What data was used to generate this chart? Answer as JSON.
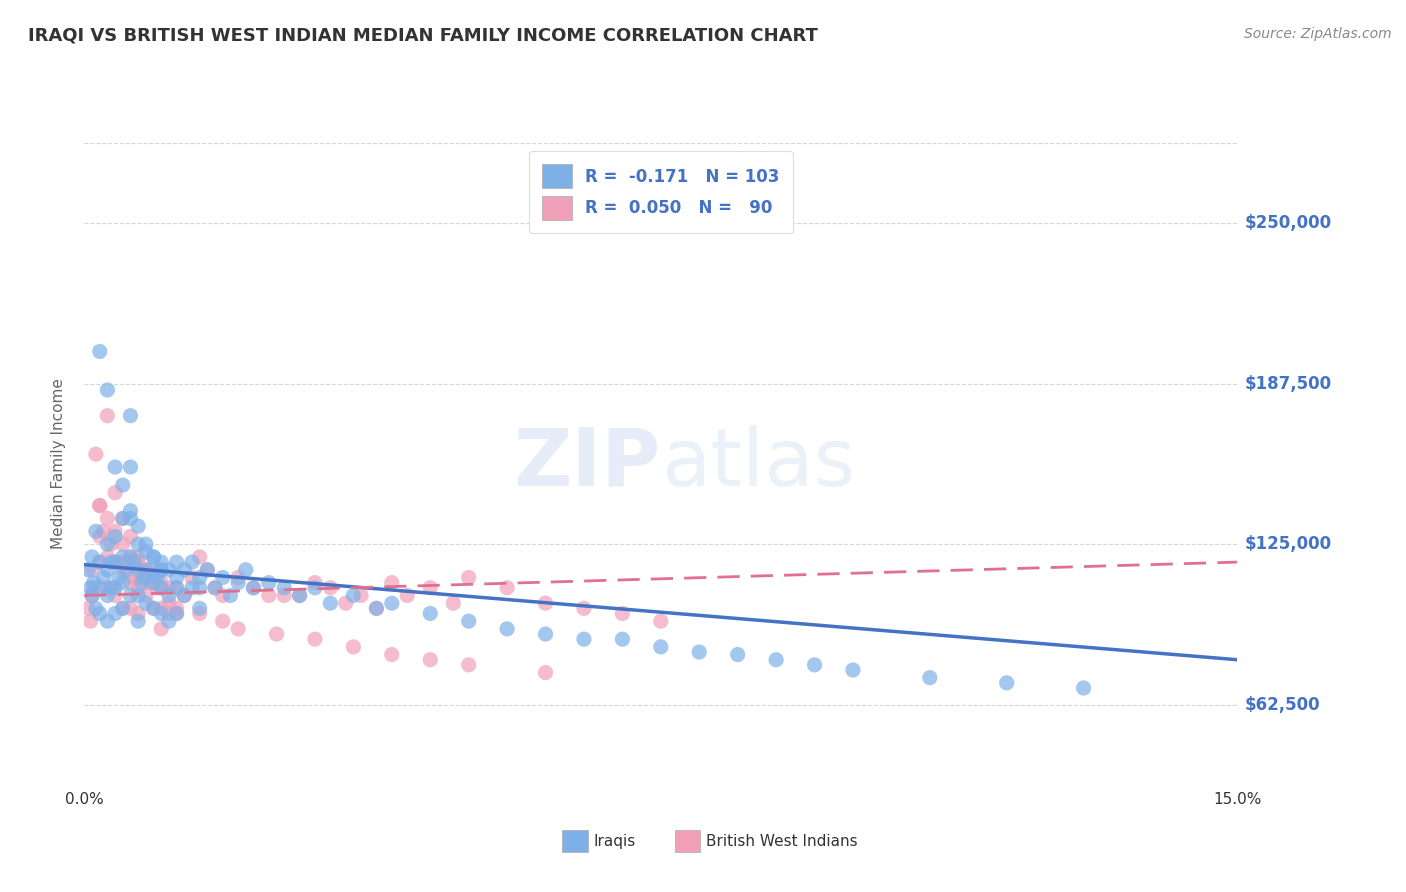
{
  "title": "IRAQI VS BRITISH WEST INDIAN MEDIAN FAMILY INCOME CORRELATION CHART",
  "source": "Source: ZipAtlas.com",
  "ylabel": "Median Family Income",
  "xlim": [
    0.0,
    0.15
  ],
  "ylim": [
    31250,
    281250
  ],
  "yticks": [
    62500,
    125000,
    187500,
    250000
  ],
  "ytick_labels": [
    "$62,500",
    "$125,000",
    "$187,500",
    "$250,000"
  ],
  "xticks": [
    0.0,
    0.015,
    0.03,
    0.045,
    0.06,
    0.075,
    0.09,
    0.105,
    0.12,
    0.135,
    0.15
  ],
  "xtick_labels_show": [
    "0.0%",
    "",
    "",
    "",
    "",
    "",
    "",
    "",
    "",
    "",
    "15.0%"
  ],
  "watermark": "ZIPatlas",
  "background_color": "#ffffff",
  "grid_color": "#cccccc",
  "title_color": "#333333",
  "ylabel_color": "#666666",
  "ytick_color": "#4472c4",
  "xtick_color": "#333333",
  "blue_scatter": {
    "x": [
      0.0005,
      0.0008,
      0.001,
      0.001,
      0.0012,
      0.0015,
      0.0015,
      0.002,
      0.002,
      0.002,
      0.0025,
      0.003,
      0.003,
      0.003,
      0.003,
      0.0035,
      0.0035,
      0.004,
      0.004,
      0.004,
      0.004,
      0.0045,
      0.005,
      0.005,
      0.005,
      0.005,
      0.0055,
      0.006,
      0.006,
      0.006,
      0.006,
      0.006,
      0.0065,
      0.007,
      0.007,
      0.007,
      0.007,
      0.0075,
      0.008,
      0.008,
      0.008,
      0.0085,
      0.009,
      0.009,
      0.009,
      0.0095,
      0.01,
      0.01,
      0.01,
      0.01,
      0.011,
      0.011,
      0.011,
      0.012,
      0.012,
      0.012,
      0.013,
      0.013,
      0.014,
      0.014,
      0.015,
      0.015,
      0.016,
      0.017,
      0.018,
      0.019,
      0.02,
      0.021,
      0.022,
      0.024,
      0.026,
      0.028,
      0.03,
      0.032,
      0.035,
      0.038,
      0.04,
      0.045,
      0.05,
      0.055,
      0.06,
      0.065,
      0.07,
      0.075,
      0.08,
      0.085,
      0.09,
      0.095,
      0.1,
      0.11,
      0.12,
      0.13,
      0.002,
      0.003,
      0.004,
      0.005,
      0.006,
      0.007,
      0.008,
      0.009,
      0.01,
      0.012,
      0.015
    ],
    "y": [
      115000,
      108000,
      120000,
      105000,
      110000,
      130000,
      100000,
      118000,
      108000,
      98000,
      112000,
      125000,
      115000,
      105000,
      95000,
      118000,
      108000,
      128000,
      118000,
      108000,
      98000,
      112000,
      135000,
      120000,
      110000,
      100000,
      115000,
      175000,
      155000,
      135000,
      120000,
      105000,
      118000,
      125000,
      115000,
      105000,
      95000,
      110000,
      122000,
      112000,
      102000,
      115000,
      120000,
      110000,
      100000,
      112000,
      118000,
      108000,
      98000,
      115000,
      115000,
      105000,
      95000,
      118000,
      108000,
      98000,
      115000,
      105000,
      118000,
      108000,
      112000,
      100000,
      115000,
      108000,
      112000,
      105000,
      110000,
      115000,
      108000,
      110000,
      108000,
      105000,
      108000,
      102000,
      105000,
      100000,
      102000,
      98000,
      95000,
      92000,
      90000,
      88000,
      88000,
      85000,
      83000,
      82000,
      80000,
      78000,
      76000,
      73000,
      71000,
      69000,
      200000,
      185000,
      155000,
      148000,
      138000,
      132000,
      125000,
      120000,
      115000,
      112000,
      108000
    ]
  },
  "pink_scatter": {
    "x": [
      0.0005,
      0.0008,
      0.001,
      0.001,
      0.0012,
      0.0015,
      0.002,
      0.002,
      0.002,
      0.0025,
      0.003,
      0.003,
      0.003,
      0.0035,
      0.004,
      0.004,
      0.004,
      0.0045,
      0.005,
      0.005,
      0.005,
      0.0055,
      0.006,
      0.006,
      0.006,
      0.0065,
      0.007,
      0.007,
      0.007,
      0.0075,
      0.008,
      0.008,
      0.0085,
      0.009,
      0.009,
      0.0095,
      0.01,
      0.01,
      0.01,
      0.011,
      0.011,
      0.012,
      0.012,
      0.013,
      0.014,
      0.015,
      0.016,
      0.017,
      0.018,
      0.02,
      0.022,
      0.024,
      0.026,
      0.028,
      0.03,
      0.032,
      0.034,
      0.036,
      0.038,
      0.04,
      0.042,
      0.045,
      0.048,
      0.05,
      0.055,
      0.06,
      0.065,
      0.07,
      0.075,
      0.002,
      0.003,
      0.004,
      0.005,
      0.006,
      0.007,
      0.008,
      0.009,
      0.01,
      0.011,
      0.012,
      0.015,
      0.018,
      0.02,
      0.025,
      0.03,
      0.035,
      0.04,
      0.045,
      0.05,
      0.06
    ],
    "y": [
      100000,
      95000,
      115000,
      105000,
      108000,
      160000,
      140000,
      128000,
      118000,
      130000,
      135000,
      120000,
      108000,
      125000,
      130000,
      118000,
      105000,
      118000,
      125000,
      115000,
      100000,
      118000,
      120000,
      110000,
      100000,
      112000,
      118000,
      108000,
      98000,
      112000,
      115000,
      105000,
      110000,
      112000,
      100000,
      108000,
      110000,
      100000,
      92000,
      108000,
      98000,
      108000,
      98000,
      105000,
      112000,
      120000,
      115000,
      108000,
      105000,
      112000,
      108000,
      105000,
      105000,
      105000,
      110000,
      108000,
      102000,
      105000,
      100000,
      110000,
      105000,
      108000,
      102000,
      112000,
      108000,
      102000,
      100000,
      98000,
      95000,
      140000,
      175000,
      145000,
      135000,
      128000,
      120000,
      115000,
      110000,
      108000,
      102000,
      100000,
      98000,
      95000,
      92000,
      90000,
      88000,
      85000,
      82000,
      80000,
      78000,
      75000
    ]
  },
  "blue_line": {
    "x": [
      0.0,
      0.15
    ],
    "y": [
      117000,
      80000
    ]
  },
  "pink_line": {
    "x": [
      0.0,
      0.15
    ],
    "y": [
      105000,
      118000
    ]
  },
  "blue_color": "#4472c4",
  "pink_color": "#e07090",
  "blue_scatter_color": "#7eb0e8",
  "pink_scatter_color": "#f0a0b8",
  "source_color": "#888888",
  "legend_line1": "R =  -0.171   N = 103",
  "legend_line2": "R =  0.050   N =   90",
  "bottom_label1": "Iraqis",
  "bottom_label2": "British West Indians"
}
